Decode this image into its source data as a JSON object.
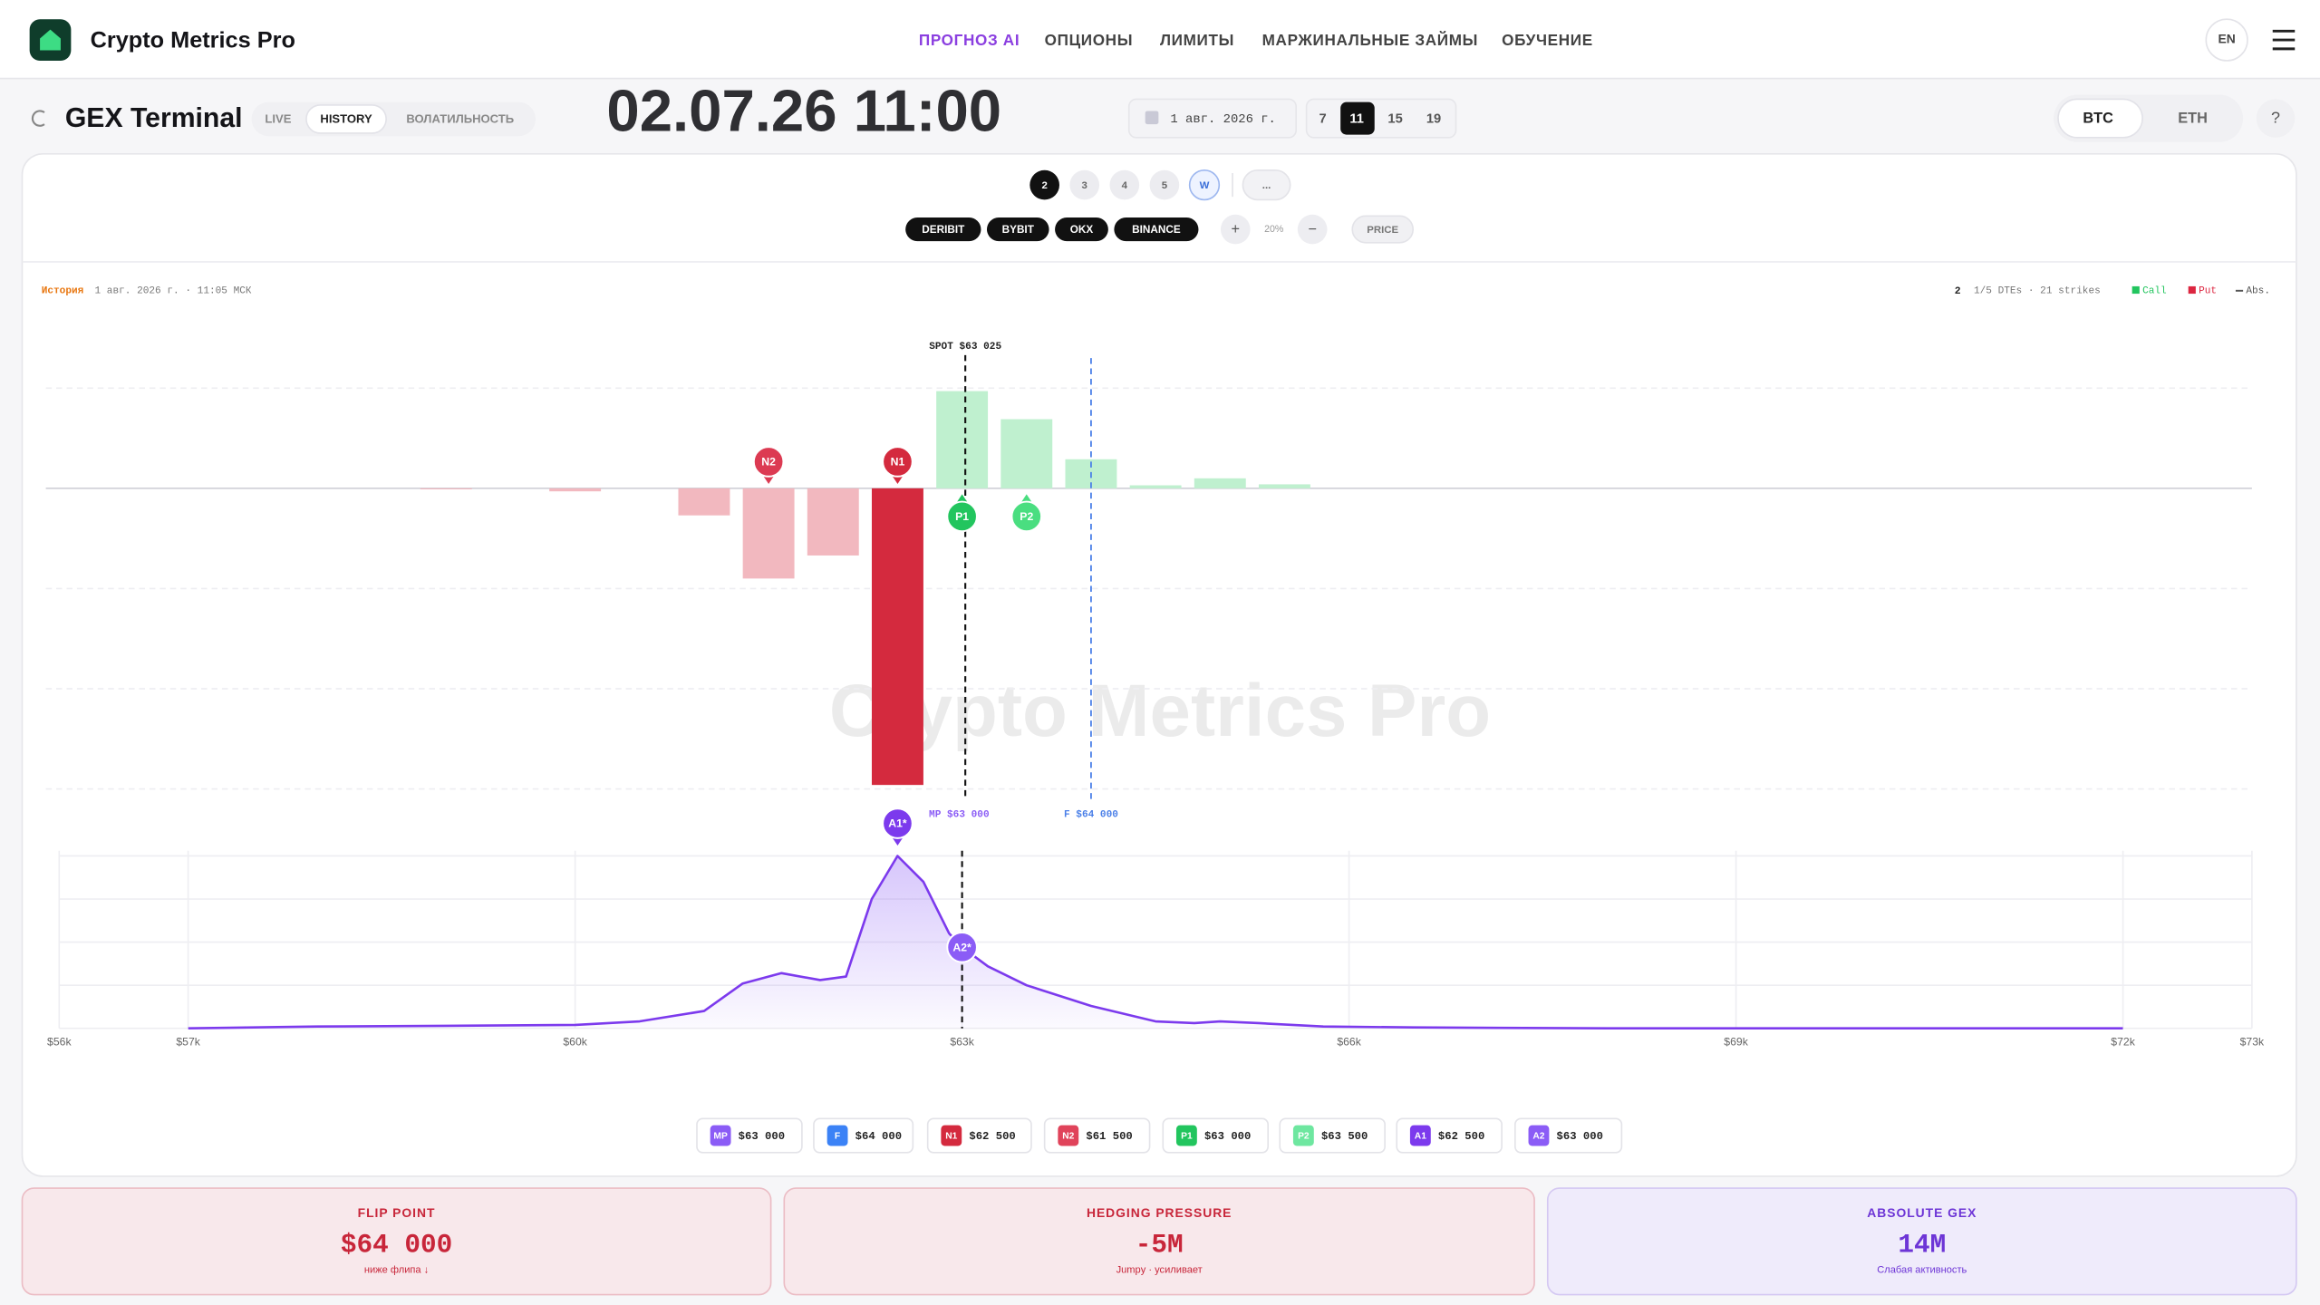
{
  "header": {
    "brand": "Crypto Metrics Pro",
    "nav": [
      "ПРОГНОЗ AI",
      "ОПЦИОНЫ",
      "ЛИМИТЫ",
      "МАРЖИНАЛЬНЫЕ ЗАЙМЫ",
      "ОБУЧЕНИЕ"
    ],
    "lang": "EN"
  },
  "toolbar": {
    "title": "GEX Terminal",
    "modes": [
      "LIVE",
      "HISTORY",
      "ВОЛАТИЛЬНОСТЬ"
    ],
    "datetime": "02.07.26 11:00",
    "date": "1 авг. 2026 г.",
    "hours": [
      7,
      11,
      15,
      19
    ],
    "assets": [
      "BTC",
      "ETH"
    ],
    "help": "?"
  },
  "dte": [
    "2",
    "3",
    "4",
    "5",
    "W",
    "..."
  ],
  "exchanges": [
    "DERIBIT",
    "BYBIT",
    "OKX",
    "BINANCE"
  ],
  "zoom": {
    "plus": "+",
    "level": "20%",
    "minus": "−",
    "price": "PRICE"
  },
  "history": {
    "label": "История",
    "timestamp": "1 авг. 2026 г. · 11:05 МСК"
  },
  "summary": {
    "dte": "2",
    "info": "1/5 DTEs · 21 strikes",
    "legend": [
      {
        "name": "Call",
        "color": "#22c55e"
      },
      {
        "name": "Put",
        "color": "#dc2640"
      },
      {
        "name": "Abs.",
        "color": "#555555"
      }
    ]
  },
  "watermark": "Crypto Metrics Pro",
  "chart_data": [
    {
      "type": "bar",
      "categories": [
        58000,
        58500,
        59000,
        59500,
        60000,
        60500,
        61000,
        61500,
        62000,
        62500,
        63000,
        63500,
        64000,
        64500,
        65000,
        65500,
        66000,
        66500,
        67000,
        67500,
        68000
      ],
      "values": [
        0,
        0,
        -0.01,
        0,
        -0.03,
        0,
        -0.27,
        -0.9,
        -0.67,
        -2.96,
        0.97,
        0.69,
        0.29,
        0.03,
        0.1,
        0.04,
        0,
        0,
        0,
        0,
        0
      ],
      "colors": [
        "#f2b8bf",
        "#f2b8bf",
        "#f2b8bf",
        "#f2b8bf",
        "#f2b8bf",
        "#f2b8bf",
        "#f2b8bf",
        "#f2b8bf",
        "#f2b8bf",
        "#d42a3e",
        "#bff0cf",
        "#bff0cf",
        "#bff0cf",
        "#bff0cf",
        "#bff0cf",
        "#bff0cf",
        "#bff0cf",
        "#bff0cf",
        "#bff0cf",
        "#bff0cf",
        "#bff0cf"
      ],
      "xlim": [
        56000,
        73000
      ],
      "ylim": [
        -3.1,
        1.3
      ],
      "yticks": [
        -3,
        -2,
        -1,
        0,
        1
      ],
      "grid": true,
      "spot": {
        "label": "SPOT $63 025",
        "value": 63025
      },
      "flip": {
        "label": "F $64 000",
        "value": 64000,
        "color": "#4a7fe8"
      },
      "markers": [
        {
          "label": "N2",
          "x": 61500,
          "color": "#dc3a52",
          "side": "up"
        },
        {
          "label": "N1",
          "x": 62500,
          "color": "#d42a3e",
          "side": "up"
        },
        {
          "label": "P1",
          "x": 63000,
          "color": "#22c55e",
          "side": "down"
        },
        {
          "label": "P2",
          "x": 63500,
          "color": "#4ade80",
          "side": "down"
        }
      ]
    },
    {
      "type": "area",
      "x": [
        57000,
        58000,
        59000,
        60000,
        60500,
        61000,
        61300,
        61600,
        61900,
        62100,
        62300,
        62500,
        62700,
        62900,
        63000,
        63200,
        63500,
        64000,
        64500,
        64800,
        65000,
        65300,
        65800,
        66500,
        68000,
        70000,
        72000
      ],
      "values": [
        0,
        0.01,
        0.015,
        0.02,
        0.04,
        0.1,
        0.26,
        0.32,
        0.28,
        0.3,
        0.75,
        1.0,
        0.85,
        0.55,
        0.47,
        0.36,
        0.25,
        0.13,
        0.04,
        0.03,
        0.04,
        0.03,
        0.01,
        0.005,
        0,
        0,
        0
      ],
      "color": "#7c3aed",
      "xlim": [
        56000,
        73000
      ],
      "xticks": [
        {
          "value": 56000,
          "label": "$56k"
        },
        {
          "value": 57000,
          "label": "$57k"
        },
        {
          "value": 60000,
          "label": "$60k"
        },
        {
          "value": 63000,
          "label": "$63k"
        },
        {
          "value": 66000,
          "label": "$66k"
        },
        {
          "value": 69000,
          "label": "$69k"
        },
        {
          "value": 72000,
          "label": "$72k"
        },
        {
          "value": 73000,
          "label": "$73k"
        }
      ],
      "ylim": [
        0,
        1.03
      ],
      "yticks": [
        0,
        0.25,
        0.5,
        0.75,
        1
      ],
      "grid": true,
      "mp": {
        "label": "MP $63 000",
        "value": 63000
      },
      "markers": [
        {
          "label": "A1*",
          "x": 62500,
          "color": "#7c3aed",
          "side": "up"
        },
        {
          "label": "A2*",
          "x": 63000,
          "color": "#8b5cf6",
          "side": "on"
        }
      ]
    }
  ],
  "levels": [
    {
      "tag": "MP",
      "label": "$63 000",
      "color": "#8b5cf6"
    },
    {
      "tag": "F",
      "label": "$64 000",
      "color": "#3b82f6"
    },
    {
      "tag": "N1",
      "label": "$62 500",
      "color": "#d42a3e"
    },
    {
      "tag": "N2",
      "label": "$61 500",
      "color": "#e0435a"
    },
    {
      "tag": "P1",
      "label": "$63 000",
      "color": "#22c55e"
    },
    {
      "tag": "P2",
      "label": "$63 500",
      "color": "#6ee7a0"
    },
    {
      "tag": "A1",
      "label": "$62 500",
      "color": "#7c3aed"
    },
    {
      "tag": "A2",
      "label": "$63 000",
      "color": "#8b5cf6"
    }
  ],
  "cards": [
    {
      "title": "FLIP POINT",
      "value": "$64 000",
      "note": "ниже флипа ↓"
    },
    {
      "title": "HEDGING PRESSURE",
      "value": "-5M",
      "note": "Jumpy · усиливает"
    },
    {
      "title": "ABSOLUTE GEX",
      "value": "14M",
      "note": "Слабая активность"
    }
  ]
}
